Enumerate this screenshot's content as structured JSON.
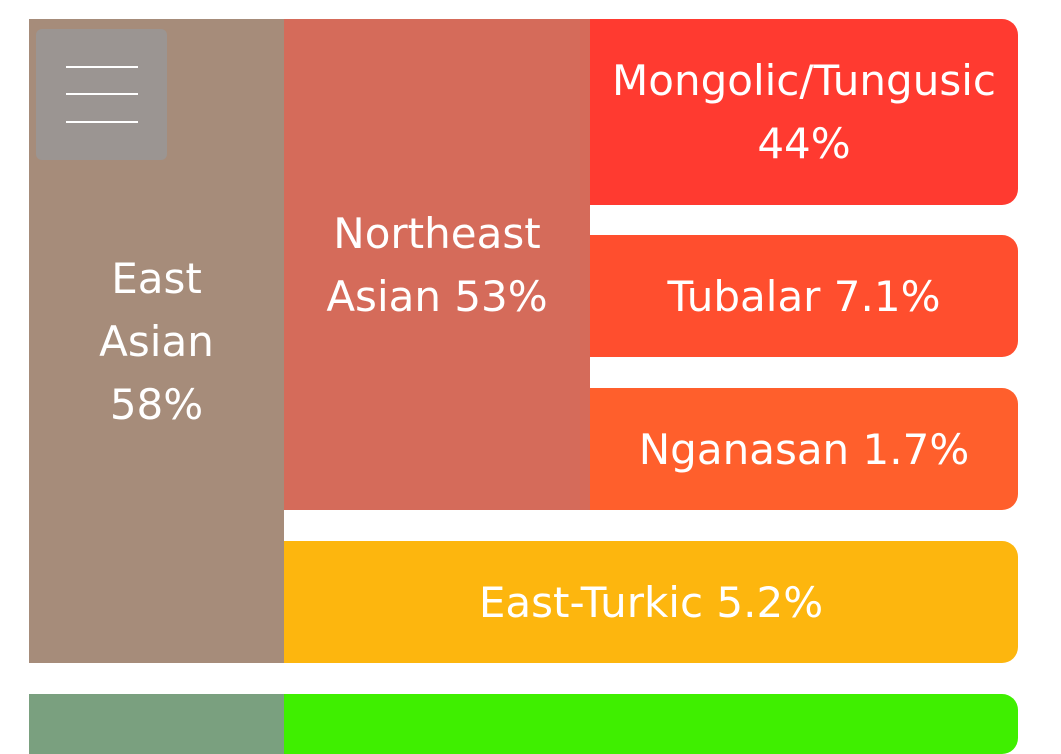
{
  "regions": [
    {
      "label": "East Asian 58%",
      "children": [
        {
          "label": "Northeast Asian 53%",
          "children": [
            {
              "label": "Mongolic/Tungusic 44%"
            },
            {
              "label": "Tubalar 7.1%"
            },
            {
              "label": "Nganasan 1.7%"
            }
          ]
        },
        {
          "label": "East-Turkic 5.2%"
        }
      ]
    }
  ]
}
